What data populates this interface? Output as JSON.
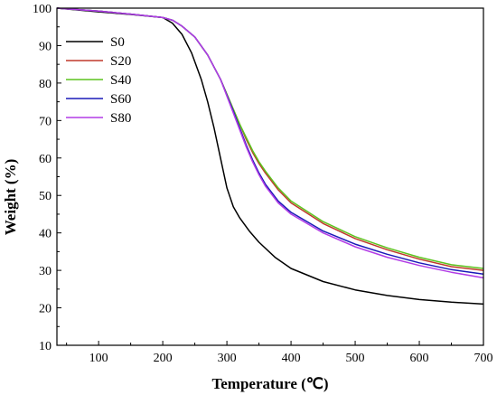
{
  "chart_data": {
    "type": "line",
    "title": "",
    "xlabel": "Temperature (℃)",
    "ylabel": "Weight (%)",
    "xlim": [
      35,
      700
    ],
    "ylim": [
      10,
      100
    ],
    "xticks": [
      100,
      200,
      300,
      400,
      500,
      600,
      700
    ],
    "yticks": [
      10,
      20,
      30,
      40,
      50,
      60,
      70,
      80,
      90,
      100
    ],
    "legend_position": "top-left",
    "grid": false,
    "series": [
      {
        "name": "S0",
        "color": "#000000",
        "x": [
          35,
          100,
          150,
          200,
          215,
          230,
          245,
          260,
          270,
          280,
          290,
          300,
          310,
          320,
          335,
          350,
          375,
          400,
          450,
          500,
          550,
          600,
          650,
          700
        ],
        "y": [
          100,
          99,
          98.3,
          97.5,
          96,
          93,
          88,
          81,
          75,
          68,
          60,
          52,
          47,
          44,
          40.5,
          37.5,
          33.5,
          30.5,
          27,
          24.8,
          23.3,
          22.2,
          21.5,
          21
        ]
      },
      {
        "name": "S20",
        "color": "#c0392b",
        "x": [
          35,
          100,
          150,
          200,
          215,
          230,
          250,
          270,
          290,
          310,
          320,
          330,
          340,
          350,
          360,
          380,
          400,
          450,
          500,
          550,
          600,
          650,
          700
        ],
        "y": [
          100,
          99.2,
          98.4,
          97.5,
          96.8,
          95.2,
          92.3,
          87.5,
          81,
          73,
          69,
          65,
          61.5,
          58.5,
          56,
          51.5,
          48,
          42.5,
          38.5,
          35.5,
          33,
          31,
          30
        ]
      },
      {
        "name": "S40",
        "color": "#5cc41e",
        "x": [
          35,
          100,
          150,
          200,
          215,
          230,
          250,
          270,
          290,
          310,
          320,
          330,
          340,
          350,
          360,
          380,
          400,
          450,
          500,
          550,
          600,
          650,
          700
        ],
        "y": [
          100,
          99.2,
          98.4,
          97.5,
          96.8,
          95.2,
          92.3,
          87.5,
          81,
          73,
          69,
          65.5,
          62,
          59,
          56.5,
          52,
          48.5,
          43,
          39,
          36,
          33.5,
          31.5,
          30.5
        ]
      },
      {
        "name": "S60",
        "color": "#1a1ab8",
        "x": [
          35,
          100,
          150,
          200,
          215,
          230,
          250,
          270,
          290,
          310,
          320,
          330,
          340,
          350,
          360,
          380,
          400,
          450,
          500,
          550,
          600,
          650,
          700
        ],
        "y": [
          100,
          99.2,
          98.4,
          97.5,
          96.8,
          95.2,
          92.3,
          87.5,
          81,
          72.5,
          68,
          63.5,
          59.5,
          56,
          53,
          48.5,
          45.5,
          40.5,
          37,
          34.3,
          32,
          30.2,
          29
        ]
      },
      {
        "name": "S80",
        "color": "#b23ce6",
        "x": [
          35,
          100,
          150,
          200,
          215,
          230,
          250,
          270,
          290,
          310,
          320,
          330,
          340,
          350,
          360,
          380,
          400,
          450,
          500,
          550,
          600,
          650,
          700
        ],
        "y": [
          100,
          99.2,
          98.4,
          97.5,
          96.8,
          95.2,
          92.3,
          87.5,
          81,
          72,
          67.5,
          63,
          59,
          55.5,
          52.5,
          48,
          45,
          40,
          36.3,
          33.5,
          31.3,
          29.5,
          28
        ]
      }
    ]
  }
}
